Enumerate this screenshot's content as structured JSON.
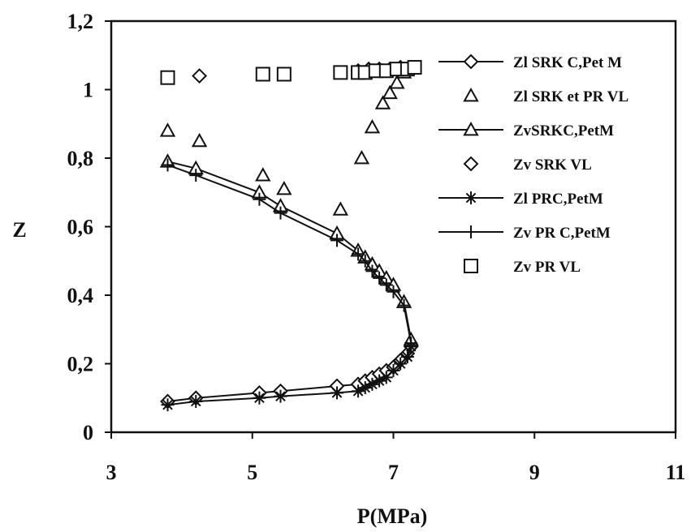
{
  "chart_data": {
    "type": "scatter",
    "xlabel": "P(MPa)",
    "ylabel": "Z",
    "xlim": [
      3,
      11
    ],
    "ylim": [
      0,
      1.2
    ],
    "x_ticks": [
      "3",
      "5",
      "7",
      "9",
      "11"
    ],
    "y_ticks": [
      "0",
      "0,2",
      "0,4",
      "0,6",
      "0,8",
      "1",
      "1,2"
    ],
    "grid": false,
    "legend_position": "right",
    "series": [
      {
        "name": "Zl SRK C,Pet M",
        "marker": "diamond",
        "line": true,
        "color": "#111111",
        "x": [
          3.8,
          4.2,
          5.1,
          5.4,
          6.2,
          6.5,
          6.6,
          6.7,
          6.8,
          6.9,
          7.0,
          7.1,
          7.2,
          7.25
        ],
        "y": [
          0.09,
          0.1,
          0.115,
          0.12,
          0.135,
          0.14,
          0.15,
          0.16,
          0.17,
          0.18,
          0.19,
          0.21,
          0.23,
          0.25
        ]
      },
      {
        "name": "Zl SRK et PR VL",
        "marker": "triangle",
        "line": false,
        "color": "#111111",
        "x": [
          3.8,
          4.25,
          5.15,
          5.45,
          6.25,
          6.55,
          6.7,
          6.85,
          6.95,
          7.05,
          7.15
        ],
        "y": [
          0.88,
          0.85,
          0.75,
          0.71,
          0.65,
          0.8,
          0.89,
          0.96,
          0.99,
          1.02,
          1.05
        ]
      },
      {
        "name": "ZvSRKC,PetM",
        "marker": "triangle",
        "line": true,
        "color": "#111111",
        "x": [
          3.8,
          4.2,
          5.1,
          5.4,
          6.2,
          6.5,
          6.6,
          6.7,
          6.8,
          6.9,
          7.0,
          7.15,
          7.25
        ],
        "y": [
          0.79,
          0.77,
          0.7,
          0.66,
          0.58,
          0.53,
          0.51,
          0.49,
          0.47,
          0.45,
          0.43,
          0.38,
          0.27
        ]
      },
      {
        "name": "Zv SRK VL",
        "marker": "diamond-open",
        "line": false,
        "color": "#111111",
        "x": [
          4.25,
          6.5,
          6.65,
          6.8,
          6.95,
          7.1,
          7.25
        ],
        "y": [
          1.04,
          1.055,
          1.06,
          1.06,
          1.06,
          1.065,
          1.065
        ]
      },
      {
        "name": "Zl PRC,PetM",
        "marker": "asterisk",
        "line": true,
        "color": "#111111",
        "x": [
          3.8,
          4.2,
          5.1,
          5.4,
          6.2,
          6.5,
          6.6,
          6.7,
          6.8,
          6.9,
          7.0,
          7.1,
          7.2,
          7.25
        ],
        "y": [
          0.08,
          0.09,
          0.1,
          0.105,
          0.115,
          0.12,
          0.13,
          0.14,
          0.15,
          0.16,
          0.18,
          0.2,
          0.22,
          0.25
        ]
      },
      {
        "name": "Zv PR C,PetM",
        "marker": "plus",
        "line": true,
        "color": "#111111",
        "x": [
          3.8,
          4.2,
          5.1,
          5.4,
          6.2,
          6.5,
          6.6,
          6.7,
          6.8,
          6.9,
          7.0,
          7.15,
          7.25
        ],
        "y": [
          0.78,
          0.75,
          0.68,
          0.64,
          0.56,
          0.52,
          0.5,
          0.47,
          0.45,
          0.43,
          0.41,
          0.37,
          0.26
        ]
      },
      {
        "name": "Zv PR VL",
        "marker": "square-open",
        "line": false,
        "color": "#111111",
        "x": [
          3.8,
          5.15,
          5.45,
          6.25,
          6.5,
          6.6,
          6.75,
          6.9,
          7.05,
          7.2,
          7.3
        ],
        "y": [
          1.035,
          1.045,
          1.045,
          1.05,
          1.05,
          1.05,
          1.055,
          1.055,
          1.06,
          1.06,
          1.065
        ]
      }
    ]
  }
}
